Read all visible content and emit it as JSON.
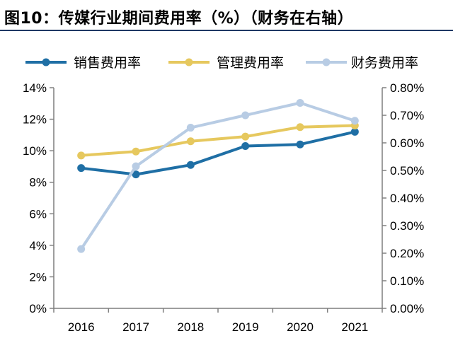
{
  "figure": {
    "title": "图10：传媒行业期间费用率（%）（财务在右轴）"
  },
  "colors": {
    "sales": "#1f6fa5",
    "admin": "#e6c85e",
    "finance": "#b8cce4",
    "axis": "#7f7f7f",
    "title_rule": "#1f3864"
  },
  "chart_data": {
    "type": "line",
    "categories": [
      "2016",
      "2017",
      "2018",
      "2019",
      "2020",
      "2021"
    ],
    "series": [
      {
        "name": "销售费用率",
        "axis": "left",
        "values": [
          8.9,
          8.5,
          9.1,
          10.3,
          10.4,
          11.2
        ]
      },
      {
        "name": "管理费用率",
        "axis": "left",
        "values": [
          9.7,
          9.95,
          10.6,
          10.9,
          11.5,
          11.6
        ]
      },
      {
        "name": "财务费用率",
        "axis": "right",
        "values": [
          0.215,
          0.515,
          0.655,
          0.7,
          0.745,
          0.68
        ]
      }
    ],
    "y_left": {
      "ylim": [
        0,
        14
      ],
      "ticks": [
        "0%",
        "2%",
        "4%",
        "6%",
        "8%",
        "10%",
        "12%",
        "14%"
      ]
    },
    "y_right": {
      "ylim": [
        0,
        0.8
      ],
      "ticks": [
        "0.00%",
        "0.10%",
        "0.20%",
        "0.30%",
        "0.40%",
        "0.50%",
        "0.60%",
        "0.70%",
        "0.80%"
      ]
    },
    "legend": "top",
    "grid": false
  }
}
